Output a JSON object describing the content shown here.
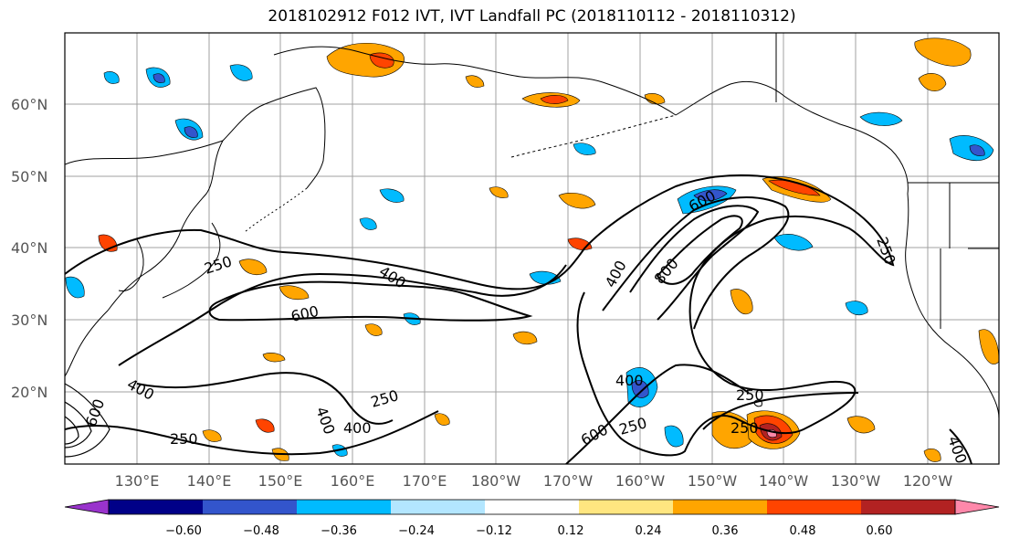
{
  "title": "2018102912 F012 IVT, IVT Landfall PC (2018110112 - 2018110312)",
  "lat_labels": [
    "60°N",
    "50°N",
    "40°N",
    "30°N",
    "20°N"
  ],
  "lon_labels": [
    "130°E",
    "140°E",
    "150°E",
    "160°E",
    "170°E",
    "180°W",
    "170°W",
    "160°W",
    "150°W",
    "140°W",
    "130°W",
    "120°W"
  ],
  "contour_labels": [
    "250",
    "400",
    "600",
    "600",
    "400",
    "800",
    "400",
    "250",
    "400",
    "250",
    "400",
    "400",
    "600",
    "250",
    "250",
    "250",
    "250",
    "400",
    "600"
  ],
  "colorbar": {
    "ticks": [
      "−0.60",
      "−0.48",
      "−0.36",
      "−0.24",
      "−0.12",
      "0.12",
      "0.24",
      "0.36",
      "0.48",
      "0.60"
    ],
    "colors": [
      "#9933cc",
      "#000088",
      "#3355cc",
      "#00bbff",
      "#b3e6ff",
      "#ffffff",
      "#ffe680",
      "#ffa500",
      "#ff4400",
      "#b22222",
      "#ff88aa"
    ]
  }
}
